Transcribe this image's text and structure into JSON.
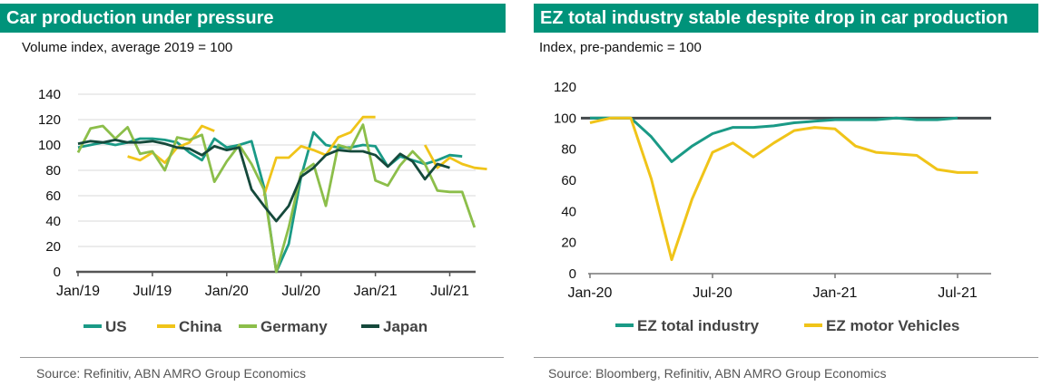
{
  "left": {
    "title": "Car production under pressure",
    "subtitle": "Volume index, average 2019 = 100",
    "source": "Source: Refinitiv, ABN AMRO Group Economics"
  },
  "right": {
    "title": "EZ total industry stable despite drop in car production",
    "subtitle": "Index, pre-pandemic = 100",
    "source": "Source: Bloomberg, Refinitiv, ABN AMRO Group Economics"
  },
  "chart_data": [
    {
      "type": "line",
      "title": "Car production under pressure",
      "ylabel": "Volume index, average 2019 = 100",
      "ylim": [
        0,
        140
      ],
      "yticks": [
        0,
        20,
        40,
        60,
        80,
        100,
        120,
        140
      ],
      "xtick_labels": [
        "Jan/19",
        "Jul/19",
        "Jan/20",
        "Jul/20",
        "Jan/21",
        "Jul/21"
      ],
      "xtick_positions": [
        0,
        6,
        12,
        18,
        24,
        30
      ],
      "grid": true,
      "legend_position": "bottom",
      "series": [
        {
          "name": "US",
          "color": "#1a9a86",
          "values": [
            98,
            100,
            102,
            100,
            102,
            105,
            105,
            104,
            102,
            94,
            88,
            105,
            98,
            100,
            103,
            67,
            0,
            22,
            75,
            110,
            100,
            98,
            98,
            100,
            99,
            83,
            91,
            88,
            85,
            88,
            92,
            91,
            null
          ]
        },
        {
          "name": "China",
          "color": "#f0c419",
          "values": [
            null,
            null,
            null,
            null,
            91,
            88,
            94,
            86,
            98,
            102,
            115,
            111,
            null,
            null,
            null,
            60,
            90,
            90,
            99,
            96,
            92,
            106,
            110,
            122,
            122,
            null,
            null,
            null,
            100,
            82,
            90,
            85,
            82,
            81
          ]
        },
        {
          "name": "Germany",
          "color": "#8cbe4a",
          "values": [
            94,
            113,
            115,
            105,
            114,
            93,
            95,
            80,
            106,
            104,
            108,
            71,
            87,
            100,
            85,
            65,
            0,
            35,
            78,
            85,
            52,
            100,
            97,
            116,
            72,
            68,
            84,
            95,
            85,
            64,
            63,
            63,
            35
          ]
        },
        {
          "name": "Japan",
          "color": "#15493b",
          "values": [
            101,
            103,
            102,
            104,
            102,
            102,
            103,
            101,
            98,
            97,
            92,
            99,
            96,
            98,
            65,
            52,
            40,
            52,
            75,
            82,
            92,
            96,
            95,
            95,
            92,
            83,
            93,
            87,
            73,
            85,
            82,
            null,
            null
          ]
        }
      ]
    },
    {
      "type": "line",
      "title": "EZ total industry stable despite drop in car production",
      "ylabel": "Index, pre-pandemic = 100",
      "ylim": [
        0,
        120
      ],
      "yticks": [
        0,
        20,
        40,
        60,
        80,
        100,
        120
      ],
      "xtick_labels": [
        "Jan-20",
        "Jul-20",
        "Jan-21",
        "Jul-21"
      ],
      "xtick_positions": [
        0,
        6,
        12,
        18
      ],
      "reference_line": 100,
      "grid": false,
      "legend_position": "bottom",
      "series": [
        {
          "name": "EZ total industry",
          "color": "#1a9a86",
          "values": [
            100,
            100,
            100,
            88,
            72,
            82,
            90,
            94,
            94,
            95,
            97,
            98,
            99,
            99,
            99,
            100,
            99,
            99,
            100
          ]
        },
        {
          "name": "EZ motor Vehicles",
          "color": "#f0c419",
          "values": [
            97,
            100,
            100,
            61,
            9,
            48,
            78,
            84,
            75,
            84,
            92,
            94,
            93,
            82,
            78,
            77,
            76,
            67,
            65,
            65
          ]
        }
      ]
    }
  ]
}
